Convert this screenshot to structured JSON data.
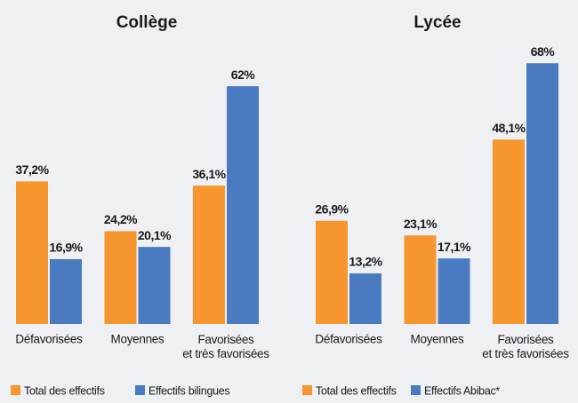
{
  "chart_data": [
    {
      "type": "bar",
      "title": "Collège",
      "categories": [
        "Défavorisées",
        "Moyennes",
        "Favorisées\net très favorisées"
      ],
      "series": [
        {
          "name": "Total des effectifs",
          "color": "#f7952f",
          "values": [
            37.2,
            24.2,
            36.1
          ],
          "value_labels": [
            "37,2%",
            "24,2%",
            "36,1%"
          ]
        },
        {
          "name": "Effectifs bilingues",
          "color": "#4a7bc0",
          "values": [
            16.9,
            20.1,
            62
          ],
          "value_labels": [
            "16,9%",
            "20,1%",
            "62%"
          ]
        }
      ]
    },
    {
      "type": "bar",
      "title": "Lycée",
      "categories": [
        "Défavorisées",
        "Moyennes",
        "Favorisées\net très favorisées"
      ],
      "series": [
        {
          "name": "Total des effectifs",
          "color": "#f7952f",
          "values": [
            26.9,
            23.1,
            48.1
          ],
          "value_labels": [
            "26,9%",
            "23,1%",
            "48,1%"
          ]
        },
        {
          "name": "Effectifs Abibac*",
          "color": "#4a7bc0",
          "values": [
            13.2,
            17.1,
            68
          ],
          "value_labels": [
            "13,2%",
            "17,1%",
            "68%"
          ]
        }
      ]
    }
  ]
}
